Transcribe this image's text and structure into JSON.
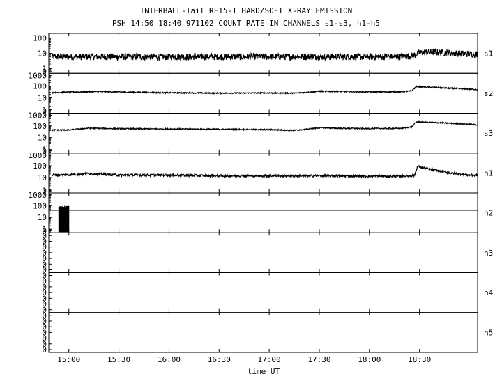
{
  "chart_data": {
    "type": "line",
    "title": "INTERBALL-Tail RF15-I HARD/SOFT X-RAY EMISSION",
    "subtitle": "PSH 14:50 18:40 971102  COUNT RATE IN CHANNELS s1-s3, h1-h5",
    "xlabel": "time UT",
    "x_ticks": [
      "15:00",
      "15:30",
      "16:00",
      "16:30",
      "17:00",
      "17:30",
      "18:00",
      "18:30"
    ],
    "x_tick_hours": [
      15.0,
      15.5,
      16.0,
      16.5,
      17.0,
      17.5,
      18.0,
      18.5
    ],
    "xlim_hours": [
      14.8,
      19.08
    ],
    "y_scale": "log",
    "panels": [
      {
        "channel": "s1",
        "y_tick_labels": [
          "100",
          "10",
          "1",
          "0"
        ],
        "ylim": [
          0.5,
          200
        ],
        "x": [
          14.83,
          15.5,
          16.5,
          17.0,
          17.5,
          18.0,
          18.3,
          18.44,
          18.5,
          18.6,
          18.75,
          19.0,
          19.08
        ],
        "values": [
          6,
          6,
          6,
          6,
          6,
          6,
          6,
          7,
          11,
          12,
          11,
          9,
          9
        ],
        "noise": 0.22
      },
      {
        "channel": "s2",
        "y_tick_labels": [
          "1000",
          "100",
          "10",
          "1",
          "0"
        ],
        "ylim": [
          0.5,
          1200
        ],
        "x": [
          14.83,
          15.3,
          15.6,
          16.0,
          16.5,
          17.0,
          17.25,
          17.35,
          17.5,
          17.75,
          18.0,
          18.3,
          18.42,
          18.47,
          18.6,
          18.8,
          19.0,
          19.08
        ],
        "values": [
          28,
          34,
          30,
          27,
          25,
          26,
          25,
          28,
          36,
          34,
          32,
          32,
          38,
          90,
          80,
          65,
          55,
          50
        ],
        "noise": 0.05
      },
      {
        "channel": "s3",
        "y_tick_labels": [
          "1000",
          "100",
          "10",
          "1",
          "0"
        ],
        "ylim": [
          0.5,
          1200
        ],
        "x": [
          14.83,
          15.0,
          15.2,
          15.5,
          16.0,
          16.5,
          17.0,
          17.25,
          17.35,
          17.5,
          17.75,
          18.0,
          18.3,
          18.42,
          18.47,
          18.6,
          18.8,
          19.0,
          19.08
        ],
        "values": [
          45,
          45,
          65,
          58,
          55,
          52,
          48,
          42,
          50,
          70,
          62,
          60,
          62,
          80,
          220,
          200,
          170,
          140,
          120
        ],
        "noise": 0.05
      },
      {
        "channel": "h1",
        "y_tick_labels": [
          "1000",
          "100",
          "10",
          "1",
          "0"
        ],
        "ylim": [
          0.5,
          1200
        ],
        "x": [
          14.83,
          15.0,
          15.2,
          15.5,
          16.0,
          16.5,
          17.0,
          17.3,
          17.5,
          18.0,
          18.35,
          18.45,
          18.48,
          18.6,
          18.8,
          19.0,
          19.08
        ],
        "values": [
          16,
          17,
          22,
          16,
          16,
          14,
          14,
          14,
          14,
          13,
          13,
          15,
          90,
          50,
          25,
          16,
          15
        ],
        "noise": 0.1
      },
      {
        "channel": "h2",
        "y_tick_labels": [
          "1000",
          "100",
          "10",
          "1",
          "0"
        ],
        "ylim": [
          0.5,
          1200
        ],
        "level": 40,
        "burst_range_hours": [
          14.9,
          15.0
        ],
        "burst_peak": 80
      },
      {
        "channel": "h3",
        "y_tick_labels": [
          "0",
          "0",
          "0",
          "0",
          "0",
          "0",
          "0"
        ]
      },
      {
        "channel": "h4",
        "y_tick_labels": [
          "0",
          "0",
          "0",
          "0",
          "0",
          "0",
          "0"
        ]
      },
      {
        "channel": "h5",
        "y_tick_labels": [
          "0",
          "0",
          "0",
          "0",
          "0",
          "0",
          "0"
        ]
      }
    ]
  }
}
